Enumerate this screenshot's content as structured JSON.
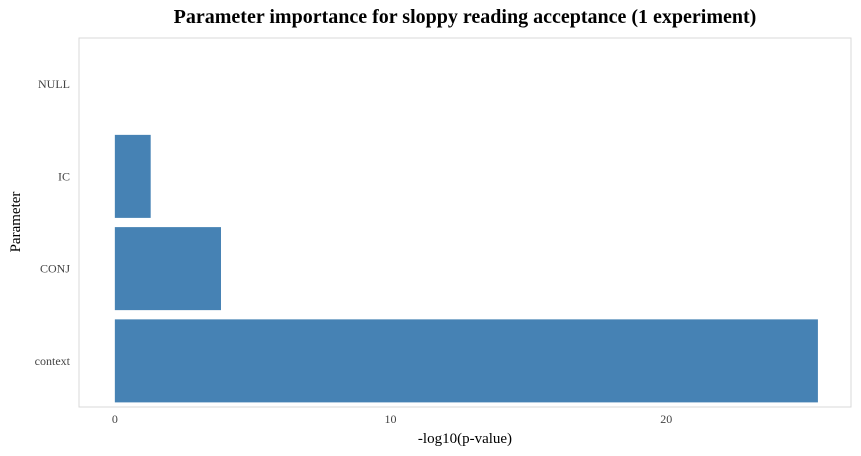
{
  "chart_data": {
    "type": "bar",
    "orientation": "horizontal",
    "title": "Parameter importance for sloppy reading acceptance  (1 experiment)",
    "xlabel": "-log10(p-value)",
    "ylabel": "Parameter",
    "categories": [
      "NULL",
      "IC",
      "CONJ",
      "context"
    ],
    "values": [
      0,
      1.3,
      3.85,
      25.5
    ],
    "xlim": [
      -1.3,
      26.7
    ],
    "xticks": [
      0,
      10,
      20
    ],
    "grid": false,
    "bar_color": "#4682B4",
    "panel_border_color": "#d9d9d9"
  }
}
